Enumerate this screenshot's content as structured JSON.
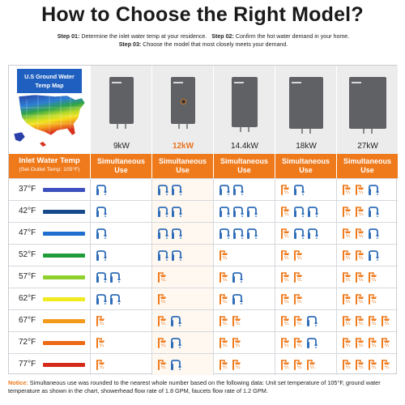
{
  "title": "How to Choose the Right Model?",
  "steps": {
    "step1_label": "Step 01:",
    "step1_text": "Determine the inlet water temp at your residence.",
    "step2_label": "Step 02:",
    "step2_text": "Confirm the hot water demand in your home.",
    "step3_label": "Step 03:",
    "step3_text": "Choose the model that most closely meets your demand."
  },
  "map": {
    "title": "U.S Ground Water Temp Map"
  },
  "header": {
    "inlet_title": "Inlet Water Temp",
    "inlet_sub": "(Set Outlet Temp: 105°F)",
    "column_label": "Simultaneous Use"
  },
  "colors": {
    "accent": "#ef7a1c",
    "highlight_model": "#e8731f",
    "faucet": "#2f6db8",
    "shower": "#ef7a1c"
  },
  "models": [
    {
      "kw": "9kW",
      "highlight": false
    },
    {
      "kw": "12kW",
      "highlight": true
    },
    {
      "kw": "14.4kW",
      "highlight": false
    },
    {
      "kw": "18kW",
      "highlight": false
    },
    {
      "kw": "27kW",
      "highlight": false
    }
  ],
  "rows": [
    {
      "temp": "37°F",
      "color": "#3e4fbf",
      "cells": [
        {
          "s": 0,
          "f": 1
        },
        {
          "s": 0,
          "f": 2
        },
        {
          "s": 0,
          "f": 2
        },
        {
          "s": 1,
          "f": 1
        },
        {
          "s": 2,
          "f": 1
        }
      ]
    },
    {
      "temp": "42°F",
      "color": "#174a8c",
      "cells": [
        {
          "s": 0,
          "f": 1
        },
        {
          "s": 0,
          "f": 2
        },
        {
          "s": 0,
          "f": 3
        },
        {
          "s": 1,
          "f": 2
        },
        {
          "s": 2,
          "f": 1
        }
      ]
    },
    {
      "temp": "47°F",
      "color": "#1f6fd1",
      "cells": [
        {
          "s": 0,
          "f": 1
        },
        {
          "s": 0,
          "f": 2
        },
        {
          "s": 0,
          "f": 3
        },
        {
          "s": 1,
          "f": 2
        },
        {
          "s": 2,
          "f": 1
        }
      ]
    },
    {
      "temp": "52°F",
      "color": "#1f9d3a",
      "cells": [
        {
          "s": 0,
          "f": 1
        },
        {
          "s": 0,
          "f": 2
        },
        {
          "s": 1,
          "f": 0
        },
        {
          "s": 2,
          "f": 0
        },
        {
          "s": 2,
          "f": 1
        }
      ]
    },
    {
      "temp": "57°F",
      "color": "#8fd12c",
      "cells": [
        {
          "s": 0,
          "f": 2
        },
        {
          "s": 1,
          "f": 0
        },
        {
          "s": 1,
          "f": 1
        },
        {
          "s": 2,
          "f": 0
        },
        {
          "s": 3,
          "f": 0
        }
      ]
    },
    {
      "temp": "62°F",
      "color": "#f0ea1e",
      "cells": [
        {
          "s": 0,
          "f": 2
        },
        {
          "s": 1,
          "f": 0
        },
        {
          "s": 1,
          "f": 1
        },
        {
          "s": 2,
          "f": 0
        },
        {
          "s": 3,
          "f": 0
        }
      ]
    },
    {
      "temp": "67°F",
      "color": "#f49a1a",
      "cells": [
        {
          "s": 1,
          "f": 0
        },
        {
          "s": 1,
          "f": 1
        },
        {
          "s": 2,
          "f": 0
        },
        {
          "s": 2,
          "f": 1
        },
        {
          "s": 4,
          "f": 0
        }
      ]
    },
    {
      "temp": "72°F",
      "color": "#ee6a16",
      "cells": [
        {
          "s": 1,
          "f": 0
        },
        {
          "s": 1,
          "f": 1
        },
        {
          "s": 2,
          "f": 0
        },
        {
          "s": 2,
          "f": 1
        },
        {
          "s": 4,
          "f": 0
        }
      ]
    },
    {
      "temp": "77°F",
      "color": "#d42b1c",
      "cells": [
        {
          "s": 1,
          "f": 0
        },
        {
          "s": 1,
          "f": 1
        },
        {
          "s": 2,
          "f": 0
        },
        {
          "s": 3,
          "f": 0
        },
        {
          "s": 4,
          "f": 0
        }
      ]
    }
  ],
  "notice": {
    "label": "Notice:",
    "text": "Simultaneous use was rounded to the nearest whole number based on the following data: Unit set temperature of 105°F, ground water temperature as shown in the chart, showerhead flow rate of 1.8 GPM, faucets flow rate of 1.2 GPM."
  }
}
